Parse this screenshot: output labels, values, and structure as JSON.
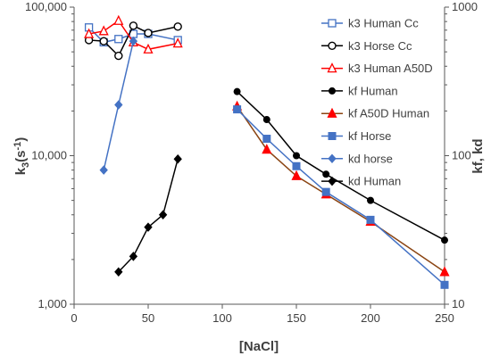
{
  "chart_data": {
    "type": "scatter",
    "xlabel": "[NaCl]",
    "ylabel": "k3(s-1)",
    "ylabel_main": "k",
    "ylabel_sub": "3",
    "ylabel_tail": "(s",
    "ylabel_sup": "-1",
    "ylabel_close": ")",
    "y2label": "kf, kd",
    "xlim": [
      0,
      250
    ],
    "xticks": [
      "0",
      "50",
      "100",
      "150",
      "200",
      "250"
    ],
    "ylim": [
      1000,
      100000
    ],
    "yscale": "log",
    "yticks": [
      "1,000",
      "10,000",
      "100,000"
    ],
    "y2lim": [
      10,
      1000
    ],
    "y2scale": "log",
    "y2ticks": [
      "10",
      "100",
      "1000"
    ],
    "legend": "right",
    "series": [
      {
        "name": "k3 Human Cc",
        "axis": "left",
        "color": "#4472C4",
        "marker": "square-open",
        "x": [
          10,
          20,
          30,
          40,
          50,
          70
        ],
        "y": [
          73000,
          58000,
          61000,
          66000,
          66000,
          60000
        ]
      },
      {
        "name": "k3 Horse Cc",
        "axis": "left",
        "color": "#000000",
        "marker": "circle-open",
        "x": [
          10,
          20,
          30,
          40,
          50,
          70
        ],
        "y": [
          60000,
          59000,
          47000,
          75000,
          67000,
          74000
        ]
      },
      {
        "name": "k3 Human A50D",
        "axis": "left",
        "color": "#FF0000",
        "marker": "triangle-open",
        "x": [
          10,
          20,
          30,
          40,
          50,
          70
        ],
        "y": [
          66000,
          69000,
          81000,
          58000,
          52000,
          57000
        ]
      },
      {
        "name": "kf Human",
        "axis": "right",
        "color": "#000000",
        "marker": "circle",
        "x": [
          110,
          130,
          150,
          170,
          200,
          250
        ],
        "y": [
          270,
          175,
          100,
          75,
          50,
          27
        ]
      },
      {
        "name": "kf A50D Human",
        "axis": "right",
        "color": "#FF0000",
        "lineColor": "#8B4513",
        "marker": "triangle",
        "x": [
          110,
          130,
          150,
          170,
          200,
          250
        ],
        "y": [
          215,
          110,
          73,
          55,
          36,
          16.5
        ]
      },
      {
        "name": "kf Horse",
        "axis": "right",
        "color": "#4472C4",
        "marker": "square",
        "x": [
          110,
          130,
          150,
          170,
          200,
          250
        ],
        "y": [
          205,
          130,
          85,
          57,
          37,
          13.5
        ]
      },
      {
        "name": "kd horse",
        "axis": "right",
        "color": "#4472C4",
        "marker": "diamond",
        "x": [
          20,
          30,
          40
        ],
        "y": [
          80,
          220,
          590
        ]
      },
      {
        "name": "kd Human",
        "axis": "right",
        "color": "#000000",
        "marker": "diamond",
        "x": [
          30,
          40,
          50,
          60,
          70
        ],
        "y": [
          16.5,
          21,
          33,
          40,
          95
        ]
      }
    ]
  }
}
